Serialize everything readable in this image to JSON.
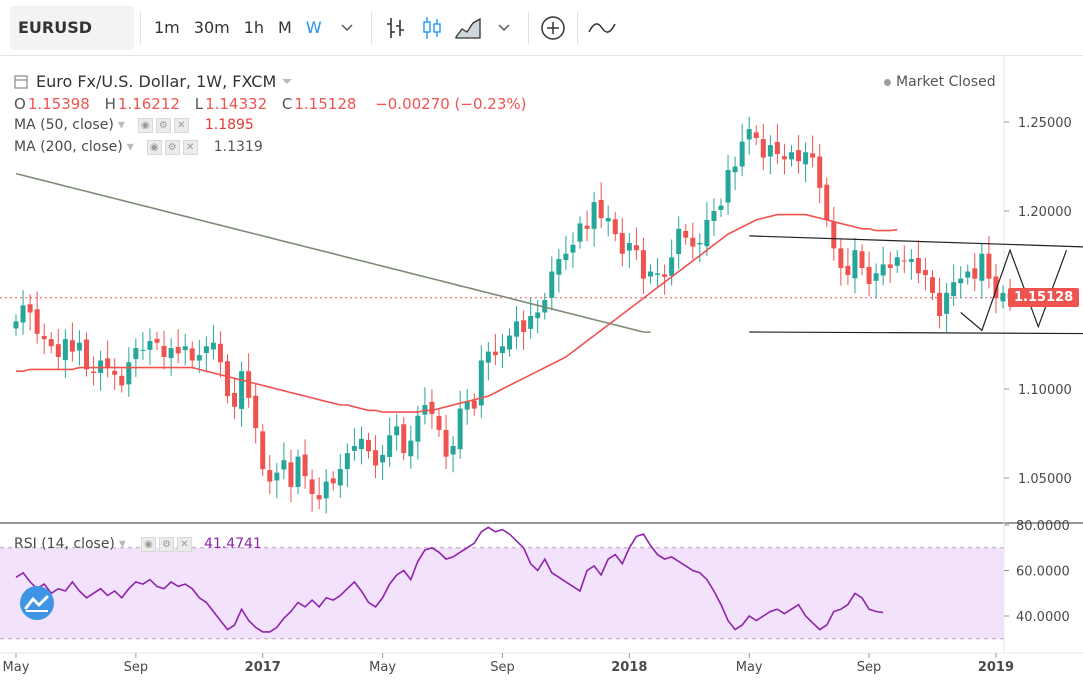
{
  "toolbar": {
    "symbol": "EURUSD",
    "intervals": [
      "1m",
      "30m",
      "1h",
      "M",
      "W"
    ],
    "active_interval": "W",
    "icons": [
      "chevron-down-icon",
      "bar-style-icon",
      "candle-style-icon",
      "area-style-icon",
      "chevron-down-icon",
      "add-indicator-icon",
      "compare-icon"
    ]
  },
  "legend": {
    "title": "Euro Fx/U.S. Dollar, 1W, FXCM",
    "ohlc": {
      "o_label": "O",
      "o": "1.15398",
      "h_label": "H",
      "h": "1.16212",
      "l_label": "L",
      "l": "1.14332",
      "c_label": "C",
      "c": "1.15128",
      "change": "−0.00270 (−0.23%)"
    },
    "ma50_label": "MA (50, close)",
    "ma50_value": "1.1895",
    "ma200_label": "MA (200, close)",
    "ma200_value": "1.1319",
    "market_status": "Market Closed",
    "last_price": "1.15128"
  },
  "rsi": {
    "label": "RSI (14, close)",
    "value": "41.4741"
  },
  "colors": {
    "up": "#26a69a",
    "down": "#ef5350",
    "ma50": "#ef5350",
    "ma200": "#7d8c75",
    "rsi": "#8e24aa",
    "rsi_band": "#f3e2fb",
    "accent": "#2196f3"
  },
  "chart_data": [
    {
      "type": "candlestick",
      "title": "Euro Fx/U.S. Dollar, 1W, FXCM",
      "ylim": [
        1.02,
        1.27
      ],
      "y_ticks": [
        "1.25000",
        "1.20000",
        "1.15128",
        "1.10000",
        "1.05000"
      ],
      "x_ticks": [
        "May",
        "Sep",
        "2017",
        "May",
        "Sep",
        "2018",
        "May",
        "Sep",
        "2019"
      ],
      "x_tick_weeks": [
        0,
        17,
        35,
        52,
        69,
        87,
        104,
        121,
        139
      ],
      "close": [
        1.138,
        1.147,
        1.143,
        1.131,
        1.128,
        1.124,
        1.118,
        1.128,
        1.121,
        1.126,
        1.111,
        1.109,
        1.116,
        1.112,
        1.108,
        1.102,
        1.115,
        1.123,
        1.122,
        1.127,
        1.126,
        1.118,
        1.123,
        1.12,
        1.124,
        1.116,
        1.119,
        1.124,
        1.126,
        1.115,
        1.096,
        1.09,
        1.11,
        1.095,
        1.078,
        1.055,
        1.048,
        1.053,
        1.06,
        1.045,
        1.062,
        1.051,
        1.041,
        1.038,
        1.048,
        1.047,
        1.055,
        1.064,
        1.068,
        1.072,
        1.065,
        1.057,
        1.063,
        1.074,
        1.079,
        1.064,
        1.071,
        1.085,
        1.091,
        1.086,
        1.077,
        1.062,
        1.068,
        1.089,
        1.093,
        1.089,
        1.116,
        1.121,
        1.119,
        1.124,
        1.13,
        1.138,
        1.132,
        1.141,
        1.143,
        1.15,
        1.166,
        1.173,
        1.176,
        1.181,
        1.193,
        1.19,
        1.205,
        1.196,
        1.196,
        1.187,
        1.176,
        1.182,
        1.178,
        1.162,
        1.166,
        1.165,
        1.163,
        1.174,
        1.19,
        1.185,
        1.18,
        1.182,
        1.195,
        1.2,
        1.203,
        1.223,
        1.225,
        1.239,
        1.246,
        1.241,
        1.23,
        1.237,
        1.232,
        1.229,
        1.233,
        1.228,
        1.233,
        1.23,
        1.213,
        1.195,
        1.179,
        1.168,
        1.164,
        1.178,
        1.168,
        1.159,
        1.165,
        1.17,
        1.168,
        1.174,
        1.172,
        1.173,
        1.165,
        1.164,
        1.154,
        1.141,
        1.154,
        1.16,
        1.162,
        1.166,
        1.162,
        1.176,
        1.162,
        1.151,
        1.154,
        1.151
      ],
      "ma50": [
        1.11,
        1.11,
        1.111,
        1.111,
        1.111,
        1.111,
        1.111,
        1.111,
        1.111,
        1.112,
        1.112,
        1.112,
        1.112,
        1.112,
        1.112,
        1.112,
        1.112,
        1.112,
        1.112,
        1.112,
        1.112,
        1.112,
        1.112,
        1.112,
        1.112,
        1.112,
        1.111,
        1.11,
        1.109,
        1.108,
        1.107,
        1.106,
        1.105,
        1.104,
        1.103,
        1.102,
        1.101,
        1.1,
        1.099,
        1.098,
        1.097,
        1.096,
        1.095,
        1.094,
        1.093,
        1.092,
        1.091,
        1.091,
        1.09,
        1.089,
        1.088,
        1.088,
        1.087,
        1.087,
        1.087,
        1.087,
        1.087,
        1.087,
        1.088,
        1.088,
        1.089,
        1.09,
        1.091,
        1.092,
        1.093,
        1.094,
        1.095,
        1.096,
        1.098,
        1.1,
        1.102,
        1.104,
        1.106,
        1.108,
        1.11,
        1.112,
        1.114,
        1.116,
        1.118,
        1.121,
        1.124,
        1.127,
        1.13,
        1.133,
        1.136,
        1.139,
        1.142,
        1.145,
        1.148,
        1.151,
        1.154,
        1.157,
        1.16,
        1.163,
        1.166,
        1.169,
        1.172,
        1.175,
        1.178,
        1.181,
        1.184,
        1.187,
        1.189,
        1.191,
        1.193,
        1.195,
        1.196,
        1.197,
        1.198,
        1.198,
        1.198,
        1.198,
        1.198,
        1.197,
        1.196,
        1.195,
        1.194,
        1.193,
        1.192,
        1.191,
        1.19,
        1.19,
        1.189,
        1.189,
        1.189,
        1.1895
      ],
      "ma200": [
        1.221,
        1.22,
        1.219,
        1.218,
        1.217,
        1.216,
        1.215,
        1.214,
        1.213,
        1.212,
        1.211,
        1.21,
        1.209,
        1.208,
        1.207,
        1.206,
        1.205,
        1.204,
        1.203,
        1.202,
        1.201,
        1.2,
        1.199,
        1.198,
        1.197,
        1.196,
        1.195,
        1.194,
        1.193,
        1.192,
        1.191,
        1.19,
        1.189,
        1.188,
        1.187,
        1.186,
        1.185,
        1.184,
        1.183,
        1.182,
        1.181,
        1.18,
        1.179,
        1.178,
        1.177,
        1.176,
        1.175,
        1.174,
        1.173,
        1.172,
        1.171,
        1.17,
        1.169,
        1.168,
        1.167,
        1.166,
        1.165,
        1.164,
        1.163,
        1.162,
        1.161,
        1.16,
        1.159,
        1.158,
        1.157,
        1.156,
        1.155,
        1.154,
        1.153,
        1.152,
        1.151,
        1.15,
        1.149,
        1.148,
        1.147,
        1.146,
        1.145,
        1.144,
        1.143,
        1.142,
        1.141,
        1.14,
        1.139,
        1.138,
        1.137,
        1.136,
        1.135,
        1.134,
        1.133,
        1.132,
        1.1319
      ],
      "annotations": {
        "triangle_upper": [
          [
            104,
            1.186
          ],
          [
            158,
            1.179
          ]
        ],
        "triangle_lower": [
          [
            104,
            1.132
          ],
          [
            158,
            1.131
          ]
        ],
        "projection_w": [
          [
            134,
            1.143
          ],
          [
            137,
            1.133
          ],
          [
            141,
            1.178
          ],
          [
            145,
            1.135
          ],
          [
            149,
            1.178
          ]
        ]
      }
    },
    {
      "type": "line",
      "title": "RSI (14, close)",
      "ylim": [
        30,
        80
      ],
      "y_ticks": [
        "80.0000",
        "60.0000",
        "40.0000"
      ],
      "band": [
        30,
        70
      ],
      "values": [
        57,
        59,
        55,
        52,
        54,
        50,
        52,
        51,
        55,
        51,
        48,
        50,
        52,
        49,
        51,
        48,
        52,
        55,
        54,
        56,
        53,
        52,
        55,
        53,
        54,
        52,
        48,
        46,
        42,
        38,
        34,
        36,
        43,
        38,
        35,
        33,
        33,
        35,
        39,
        42,
        46,
        44,
        47,
        44,
        48,
        47,
        49,
        52,
        55,
        51,
        46,
        44,
        48,
        54,
        58,
        60,
        56,
        64,
        69,
        70,
        68,
        65,
        66,
        68,
        70,
        72,
        77,
        79,
        77,
        78,
        76,
        73,
        70,
        63,
        60,
        65,
        59,
        57,
        55,
        53,
        51,
        60,
        62,
        58,
        65,
        67,
        63,
        70,
        75,
        76,
        71,
        67,
        65,
        66,
        64,
        62,
        60,
        59,
        56,
        51,
        45,
        38,
        34,
        36,
        40,
        38,
        40,
        42,
        43,
        41,
        43,
        45,
        40,
        37,
        34,
        36,
        42,
        43,
        45,
        50,
        48,
        43,
        42,
        41.4741
      ]
    }
  ]
}
